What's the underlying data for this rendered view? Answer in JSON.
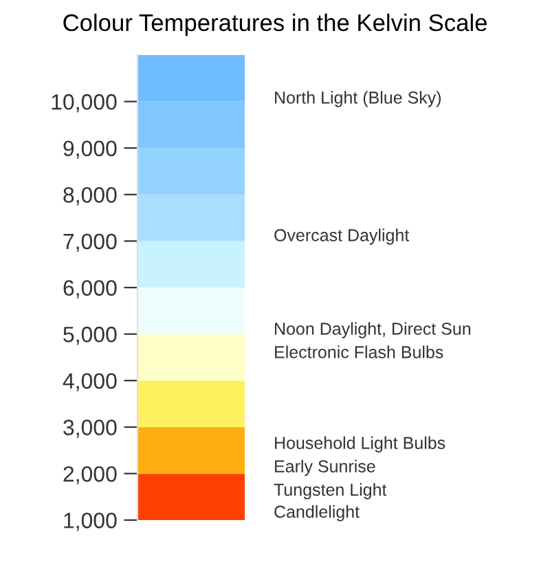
{
  "chart_data": {
    "type": "bar",
    "title": "Colour Temperatures in the Kelvin Scale",
    "categories": [
      null
    ],
    "stacked": true,
    "series": [
      {
        "color": "#ff4000",
        "values": [
          2000
        ]
      },
      {
        "color": "#ffb010",
        "values": [
          1000
        ]
      },
      {
        "color": "#fff060",
        "values": [
          1000
        ]
      },
      {
        "color": "#ffffc8",
        "values": [
          1000
        ]
      },
      {
        "color": "#eefeff",
        "values": [
          1000
        ]
      },
      {
        "color": "#c8f2ff",
        "values": [
          1000
        ]
      },
      {
        "color": "#aadfff",
        "values": [
          1000
        ]
      },
      {
        "color": "#94d2ff",
        "values": [
          1000
        ]
      },
      {
        "color": "#80c6ff",
        "values": [
          1000
        ]
      },
      {
        "color": "#70bdff",
        "values": [
          1000
        ]
      }
    ],
    "ylim": [
      1000,
      11000
    ],
    "yticks": [
      {
        "value": 1000,
        "label": "1,000"
      },
      {
        "value": 2000,
        "label": "2,000"
      },
      {
        "value": 3000,
        "label": "3,000"
      },
      {
        "value": 4000,
        "label": "4,000"
      },
      {
        "value": 5000,
        "label": "5,000"
      },
      {
        "value": 6000,
        "label": "6,000"
      },
      {
        "value": 7000,
        "label": "7,000"
      },
      {
        "value": 8000,
        "label": "8,000"
      },
      {
        "value": 9000,
        "label": "9,000"
      },
      {
        "value": 10000,
        "label": "10,000"
      }
    ],
    "tick_labels": "y",
    "grid": false,
    "annotations": [
      "North Light (Blue Sky)",
      "Overcast Daylight",
      "Noon Daylight, Direct Sun",
      "Electronic Flash Bulbs",
      "Household Light Bulbs",
      "Early Sunrise",
      "Tungsten Light",
      "Candlelight"
    ]
  }
}
